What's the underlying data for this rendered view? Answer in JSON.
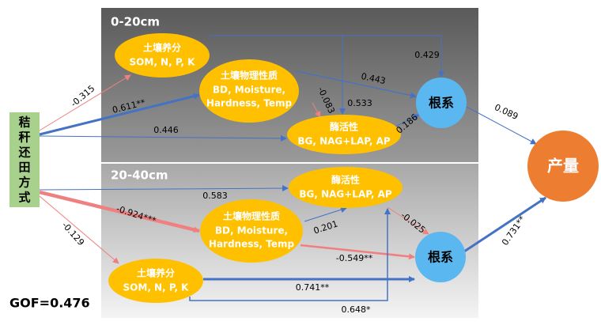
{
  "panels": {
    "top": {
      "label": "0-20cm"
    },
    "bottom": {
      "label": "20-40cm"
    }
  },
  "treatment": {
    "chars": [
      "秸",
      "秆",
      "还",
      "田",
      "方",
      "式"
    ]
  },
  "top_nodes": {
    "nutrient": [
      "土壤养分",
      "SOM, N, P, K"
    ],
    "physical": [
      "土壤物理性质",
      "BD, Moisture,",
      "Hardness, Temp"
    ],
    "enzyme": [
      "酶活性",
      "BG, NAG+LAP, AP"
    ],
    "root": "根系"
  },
  "bottom_nodes": {
    "nutrient": [
      "土壤养分",
      "SOM, N, P, K"
    ],
    "physical": [
      "土壤物理性质",
      "BD, Moisture,",
      "Hardness, Temp"
    ],
    "enzyme": [
      "酶活性",
      "BG, NAG+LAP, AP"
    ],
    "root": "根系"
  },
  "yield": "产量",
  "top_paths": [
    "-0.315",
    "0.611**",
    "0.446",
    "0.429",
    "0.443",
    "-0.083",
    "0.533",
    "0.186",
    "0.089"
  ],
  "bottom_paths": [
    "0.583",
    "-0.924***",
    "-0.129",
    "0.201",
    "-0.025",
    "-0.549**",
    "0.741**",
    "0.648*",
    "0.731**"
  ],
  "gof": "GOF=0.476"
}
